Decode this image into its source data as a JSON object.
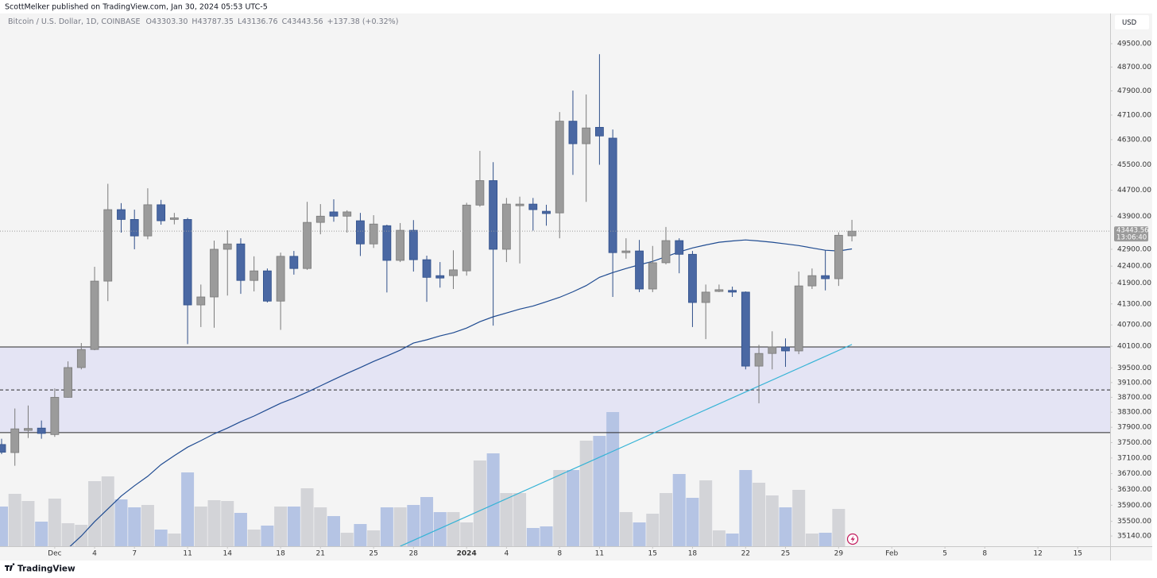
{
  "chart_data": {
    "type": "candlestick",
    "header": "ScottMelker published on TradingView.com, Jan 30, 2024 05:53 UTC-5",
    "legend": {
      "symbol": "Bitcoin / U.S. Dollar, 1D, COINBASE",
      "fields": [
        {
          "key": "O",
          "value": "43303.30"
        },
        {
          "key": "H",
          "value": "43787.35"
        },
        {
          "key": "L",
          "value": "43136.76"
        },
        {
          "key": "C",
          "value": "43443.56"
        }
      ],
      "change": "+137.38 (+0.32%)"
    },
    "currency": "USD",
    "countdown": "13:06:40",
    "brand": "TradingView",
    "log_scale": true,
    "grid": false,
    "ylim": [
      34890,
      50550
    ],
    "yticks": [
      {
        "value": 49500,
        "label": "49500.00"
      },
      {
        "value": 48700,
        "label": "48700.00"
      },
      {
        "value": 47900,
        "label": "47900.00"
      },
      {
        "value": 47100,
        "label": "47100.00"
      },
      {
        "value": 46300,
        "label": "46300.00"
      },
      {
        "value": 45500,
        "label": "45500.00"
      },
      {
        "value": 44700,
        "label": "44700.00"
      },
      {
        "value": 43900,
        "label": "43900.00"
      },
      {
        "value": 42900,
        "label": "42900.00"
      },
      {
        "value": 42400,
        "label": "42400.00"
      },
      {
        "value": 41900,
        "label": "41900.00"
      },
      {
        "value": 41300,
        "label": "41300.00"
      },
      {
        "value": 40700,
        "label": "40700.00"
      },
      {
        "value": 40100,
        "label": "40100.00"
      },
      {
        "value": 39500,
        "label": "39500.00"
      },
      {
        "value": 39100,
        "label": "39100.00"
      },
      {
        "value": 38700,
        "label": "38700.00"
      },
      {
        "value": 38300,
        "label": "38300.00"
      },
      {
        "value": 37900,
        "label": "37900.00"
      },
      {
        "value": 37500,
        "label": "37500.00"
      },
      {
        "value": 37100,
        "label": "37100.00"
      },
      {
        "value": 36700,
        "label": "36700.00"
      },
      {
        "value": 36300,
        "label": "36300.00"
      },
      {
        "value": 35900,
        "label": "35900.00"
      },
      {
        "value": 35500,
        "label": "35500.00"
      },
      {
        "value": 35140,
        "label": "35140.00"
      }
    ],
    "categories": [
      null,
      null,
      null,
      null,
      "Dec",
      null,
      null,
      "4",
      null,
      null,
      "7",
      null,
      null,
      null,
      "11",
      null,
      null,
      "14",
      null,
      null,
      null,
      "18",
      null,
      null,
      "21",
      null,
      null,
      null,
      "25",
      null,
      null,
      "28",
      null,
      null,
      null,
      "2024",
      null,
      null,
      "4",
      null,
      null,
      null,
      "8",
      null,
      null,
      "11",
      null,
      null,
      null,
      "15",
      null,
      null,
      "18",
      null,
      null,
      null,
      "22",
      null,
      null,
      "25",
      null,
      null,
      null,
      "29",
      null,
      null,
      null,
      "Feb",
      null,
      null,
      null,
      "5",
      null,
      null,
      "8",
      null,
      null,
      null,
      "12",
      null,
      null,
      "15",
      null
    ],
    "open": [
      37450,
      37240,
      37820,
      37880,
      37710,
      38700,
      39510,
      40010,
      41960,
      44100,
      43800,
      43300,
      44250,
      43800,
      43800,
      41270,
      41500,
      42900,
      43060,
      41980,
      42260,
      41380,
      42690,
      42330,
      43710,
      44030,
      43900,
      43760,
      43060,
      43610,
      42570,
      43470,
      42590,
      42120,
      42120,
      42260,
      44240,
      45000,
      42900,
      44220,
      44270,
      44050,
      44000,
      46900,
      46170,
      46700,
      46350,
      42800,
      42850,
      41730,
      42500,
      43160,
      42750,
      41340,
      41660,
      41690,
      41640,
      39550,
      39900,
      40080,
      39970,
      41820,
      42120,
      42030,
      43303.3,
      null,
      null,
      null,
      null,
      null,
      null,
      null,
      null,
      null,
      null,
      null,
      null,
      null,
      null,
      null,
      null,
      null,
      null
    ],
    "high": [
      37600,
      38400,
      38480,
      38080,
      38940,
      39680,
      40190,
      42380,
      44900,
      44300,
      44100,
      44760,
      44400,
      44000,
      43850,
      41860,
      43160,
      43470,
      43230,
      42690,
      42330,
      42800,
      42850,
      44340,
      44270,
      44420,
      44080,
      44000,
      43930,
      43640,
      43690,
      43780,
      42710,
      42520,
      42870,
      44310,
      45940,
      45580,
      44460,
      44500,
      44460,
      44250,
      47200,
      47910,
      47780,
      49140,
      46630,
      43230,
      43180,
      43000,
      43570,
      43230,
      42850,
      41860,
      41860,
      41800,
      41660,
      40140,
      40520,
      40320,
      42240,
      42330,
      42870,
      43410,
      43787.35,
      null,
      null,
      null,
      null,
      null,
      null,
      null,
      null,
      null,
      null,
      null,
      null,
      null,
      null,
      null,
      null,
      null,
      null
    ],
    "low": [
      37200,
      36900,
      37620,
      37600,
      37650,
      38690,
      39460,
      39990,
      41380,
      43400,
      42900,
      43200,
      43640,
      43650,
      40160,
      40640,
      40620,
      41540,
      41590,
      41660,
      41340,
      40560,
      42150,
      42290,
      43350,
      43730,
      43400,
      42700,
      42940,
      41630,
      42520,
      42240,
      41360,
      41770,
      41730,
      42120,
      44190,
      40680,
      42520,
      42480,
      43460,
      43610,
      43230,
      45180,
      44340,
      45500,
      41500,
      42620,
      41640,
      41640,
      42450,
      42190,
      40640,
      40300,
      41640,
      41500,
      39460,
      38540,
      39460,
      39530,
      39880,
      41730,
      41690,
      41820,
      43136.76,
      null,
      null,
      null,
      null,
      null,
      null,
      null,
      null,
      null,
      null,
      null,
      null,
      null,
      null,
      null,
      null,
      null,
      null
    ],
    "close": [
      37250,
      37860,
      37870,
      37740,
      38700,
      39510,
      40010,
      41960,
      44100,
      43800,
      43300,
      44250,
      43760,
      43850,
      41270,
      41500,
      42900,
      43060,
      41980,
      42260,
      41380,
      42690,
      42330,
      43710,
      43900,
      43900,
      44030,
      43060,
      43660,
      42570,
      43470,
      42590,
      42070,
      42050,
      42290,
      44240,
      45000,
      42900,
      44270,
      44270,
      44100,
      43980,
      46900,
      46170,
      46680,
      46420,
      42800,
      42850,
      41730,
      42500,
      43160,
      42750,
      41340,
      41640,
      41710,
      41640,
      39550,
      39900,
      40080,
      39970,
      41820,
      42120,
      42030,
      43320,
      43443.56,
      null,
      null,
      null,
      null,
      null,
      null,
      null,
      null,
      null,
      null,
      null,
      null,
      null,
      null,
      null,
      null,
      null,
      null
    ],
    "volume": [
      50,
      66,
      57,
      31,
      60,
      29,
      27,
      82,
      88,
      59,
      49,
      52,
      21,
      16,
      93,
      50,
      58,
      57,
      42,
      21,
      26,
      50,
      50,
      73,
      49,
      38,
      17,
      28,
      20,
      49,
      49,
      52,
      62,
      43,
      43,
      30,
      108,
      117,
      67,
      67,
      23,
      25,
      96,
      96,
      133,
      139,
      169,
      43,
      30,
      41,
      67,
      91,
      61,
      83,
      20,
      16,
      96,
      80,
      64,
      49,
      71,
      16,
      17,
      47,
      null,
      null,
      null,
      null,
      null,
      null,
      null,
      null,
      null,
      null,
      null,
      null,
      null,
      null,
      null,
      null,
      null,
      null,
      null
    ],
    "ma": {
      "color": "#1f4b91",
      "values": [
        null,
        null,
        null,
        null,
        null,
        34840,
        35140,
        35490,
        35810,
        36130,
        36390,
        36630,
        36930,
        37160,
        37380,
        37550,
        37730,
        37880,
        38050,
        38200,
        38370,
        38540,
        38680,
        38840,
        39010,
        39180,
        39350,
        39510,
        39680,
        39830,
        39990,
        40190,
        40280,
        40390,
        40480,
        40610,
        40790,
        40930,
        41040,
        41150,
        41240,
        41360,
        41490,
        41650,
        41830,
        42070,
        42210,
        42330,
        42440,
        42540,
        42680,
        42820,
        42940,
        43030,
        43110,
        43150,
        43180,
        43150,
        43110,
        43060,
        43010,
        42940,
        42870,
        42850,
        42910,
        null,
        null,
        null,
        null,
        null,
        null,
        null,
        null,
        null,
        null,
        null,
        null,
        null,
        null,
        null,
        null,
        null,
        null
      ]
    },
    "trendline": {
      "color": "#35b3d6",
      "points": [
        {
          "x": 30,
          "y": 34890
        },
        {
          "x": 64,
          "y": 40150
        }
      ]
    },
    "levels": [
      {
        "value": 40080,
        "style": "solid"
      },
      {
        "value": 38900,
        "style": "dashed"
      },
      {
        "value": 37760,
        "style": "solid"
      }
    ],
    "zone_color": "#e4e4f4",
    "colors": {
      "up": "#9b9b9b",
      "up_border": "#7a7a7a",
      "down": "#4a68a3",
      "down_border": "#2f4f8a",
      "volume_up": "#d3d4d8",
      "volume_down": "#b5c4e4"
    }
  }
}
